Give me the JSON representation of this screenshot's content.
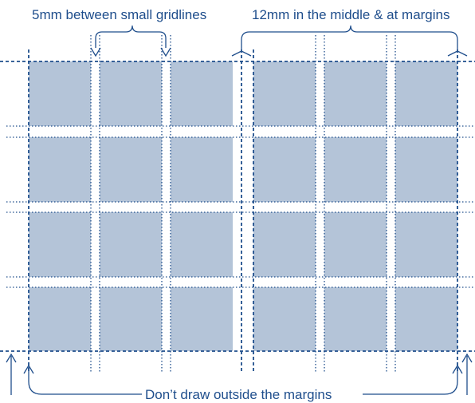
{
  "labels": {
    "small_gap": "5mm between small gridlines",
    "large_gap": "12mm in the middle & at margins",
    "margins": "Don’t draw outside the margins"
  },
  "colors": {
    "panel_fill": "#b4c4d8",
    "line": "#1f4e8c",
    "text": "#1f4e8c",
    "background": "#ffffff"
  },
  "grid": {
    "columns_per_side": 3,
    "sides": 2,
    "rows": 4
  }
}
